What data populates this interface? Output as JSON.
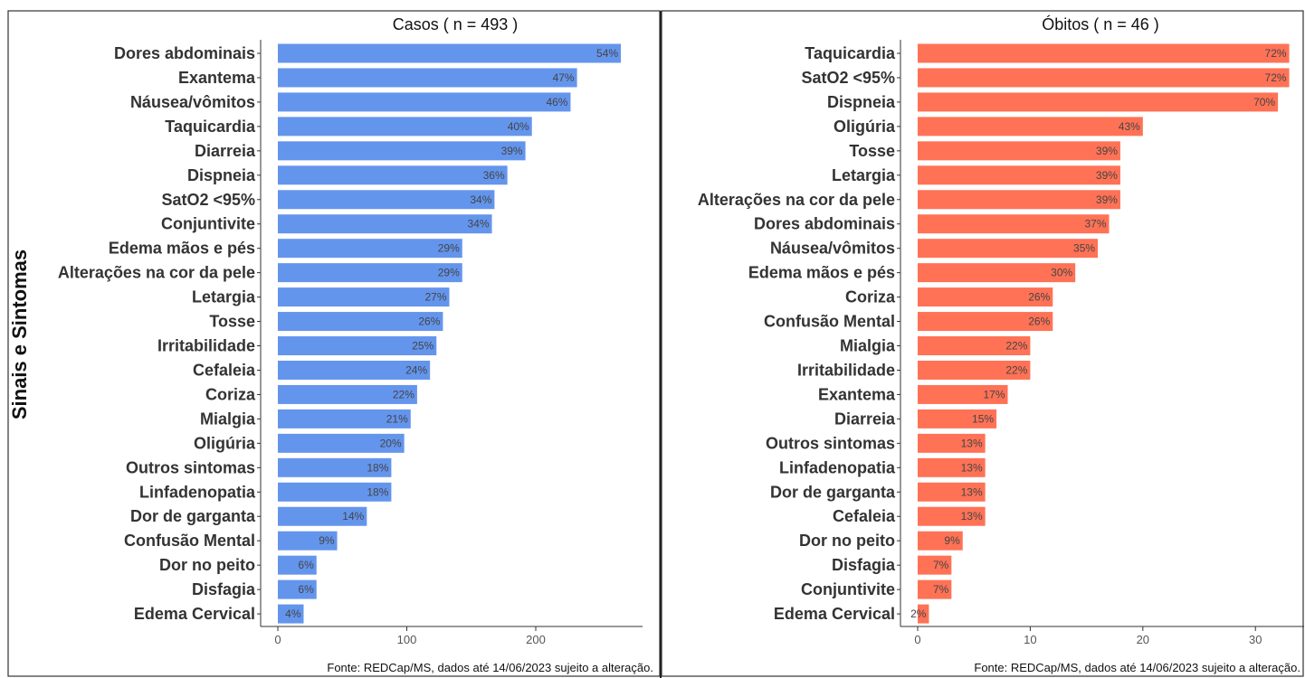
{
  "y_axis_label": "Sinais e Sintomas",
  "chart_data": [
    {
      "type": "bar",
      "orientation": "horizontal",
      "title": "Casos ( n =  493 )",
      "color": "#6495ED",
      "xlim": [
        0,
        280
      ],
      "xticks": [
        0,
        100,
        200
      ],
      "categories": [
        "Dores abdominais",
        "Exantema",
        "Náusea/vômitos",
        "Taquicardia",
        "Diarreia",
        "Dispneia",
        "SatO2 <95%",
        "Conjuntivite",
        "Edema mãos e pés",
        "Alterações na cor da pele",
        "Letargia",
        "Tosse",
        "Irritabilidade",
        "Cefaleia",
        "Coriza",
        "Mialgia",
        "Oligúria",
        "Outros sintomas",
        "Linfadenopatia",
        "Dor de garganta",
        "Confusão Mental",
        "Dor no peito",
        "Disfagia",
        "Edema Cervical"
      ],
      "values": [
        266,
        232,
        227,
        197,
        192,
        178,
        168,
        166,
        143,
        143,
        133,
        128,
        123,
        118,
        108,
        103,
        98,
        88,
        88,
        69,
        46,
        30,
        30,
        20
      ],
      "value_labels": [
        "54%",
        "47%",
        "46%",
        "40%",
        "39%",
        "36%",
        "34%",
        "34%",
        "29%",
        "29%",
        "27%",
        "26%",
        "25%",
        "24%",
        "22%",
        "21%",
        "20%",
        "18%",
        "18%",
        "14%",
        "9%",
        "6%",
        "6%",
        "4%"
      ],
      "source": "Fonte: REDCap/MS, dados até 14/06/2023 sujeito a alteração."
    },
    {
      "type": "bar",
      "orientation": "horizontal",
      "title": "Óbitos ( n =  46 )",
      "color": "#FF7256",
      "xlim": [
        0,
        34
      ],
      "xticks": [
        0,
        10,
        20,
        30
      ],
      "categories": [
        "Taquicardia",
        "SatO2 <95%",
        "Dispneia",
        "Oligúria",
        "Tosse",
        "Letargia",
        "Alterações na cor da pele",
        "Dores abdominais",
        "Náusea/vômitos",
        "Edema mãos e pés",
        "Coriza",
        "Confusão Mental",
        "Mialgia",
        "Irritabilidade",
        "Exantema",
        "Diarreia",
        "Outros sintomas",
        "Linfadenopatia",
        "Dor de garganta",
        "Cefaleia",
        "Dor no peito",
        "Disfagia",
        "Conjuntivite",
        "Edema Cervical"
      ],
      "values": [
        33,
        33,
        32,
        20,
        18,
        18,
        18,
        17,
        16,
        14,
        12,
        12,
        10,
        10,
        8,
        7,
        6,
        6,
        6,
        6,
        4,
        3,
        3,
        1
      ],
      "value_labels": [
        "72%",
        "72%",
        "70%",
        "43%",
        "39%",
        "39%",
        "39%",
        "37%",
        "35%",
        "30%",
        "26%",
        "26%",
        "22%",
        "22%",
        "17%",
        "15%",
        "13%",
        "13%",
        "13%",
        "13%",
        "9%",
        "7%",
        "7%",
        "2%"
      ],
      "source": "Fonte: REDCap/MS, dados até 14/06/2023 sujeito a alteração."
    }
  ]
}
